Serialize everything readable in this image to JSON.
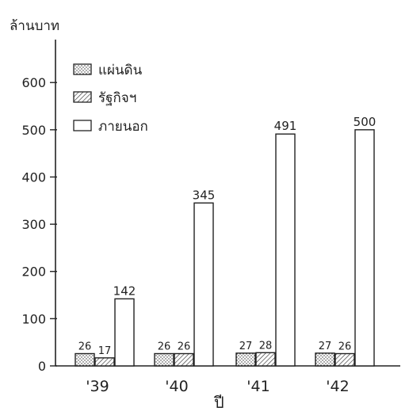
{
  "chart_data": {
    "type": "bar",
    "ylabel": "ล้านบาท",
    "xlabel": "ปี",
    "categories": [
      "'39",
      "'40",
      "'41",
      "'42"
    ],
    "series": [
      {
        "name": "แผ่นดิน",
        "values": [
          26,
          26,
          27,
          27
        ],
        "pattern": "dots"
      },
      {
        "name": "รัฐกิจฯ",
        "values": [
          17,
          26,
          28,
          26
        ],
        "pattern": "hatch"
      },
      {
        "name": "ภายนอก",
        "values": [
          142,
          345,
          491,
          500
        ],
        "pattern": "none"
      }
    ],
    "data_labels": [
      [
        "26",
        "17",
        "142"
      ],
      [
        "26",
        "26",
        "345"
      ],
      [
        "27",
        "28",
        "491"
      ],
      [
        "27",
        "26",
        "500"
      ]
    ],
    "yticks": [
      0,
      100,
      200,
      300,
      400,
      500,
      600
    ],
    "ytick_labels": [
      "0",
      "100",
      "200",
      "300",
      "400",
      "500",
      "600"
    ],
    "ylim": [
      0,
      640
    ],
    "grid": false,
    "legend_position": "top-left",
    "colors": {
      "ink": "#222222",
      "bar_fill": "#ffffff",
      "background": "#ffffff"
    }
  }
}
